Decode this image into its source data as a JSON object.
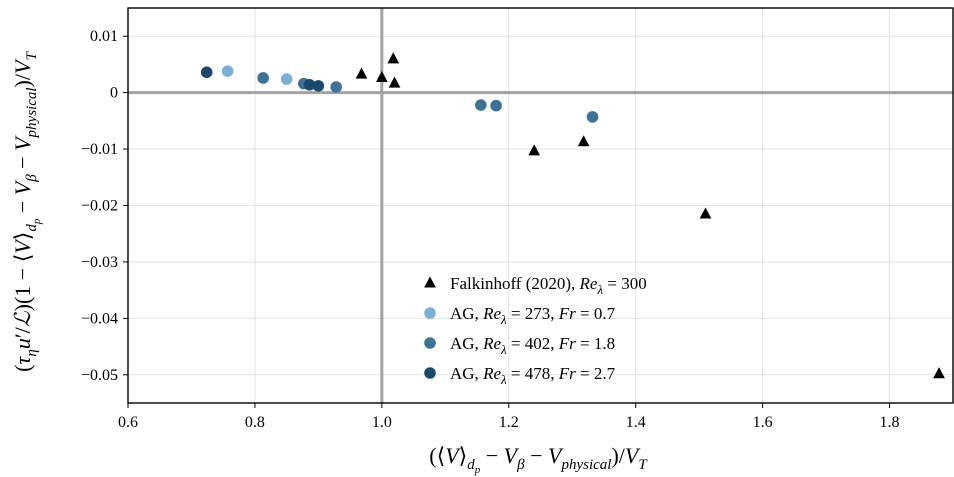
{
  "chart_data": {
    "type": "scatter",
    "xlim": [
      0.6,
      1.9
    ],
    "ylim": [
      -0.055,
      0.015
    ],
    "xticks": [
      0.6,
      0.8,
      1.0,
      1.2,
      1.4,
      1.6,
      1.8
    ],
    "xtick_labels": [
      "0.6",
      "0.8",
      "1.0",
      "1.2",
      "1.4",
      "1.6",
      "1.8"
    ],
    "yticks": [
      0.01,
      0,
      -0.01,
      -0.02,
      -0.03,
      -0.04,
      -0.05
    ],
    "ytick_labels": [
      "0.01",
      "0",
      "−0.01",
      "−0.02",
      "−0.03",
      "−0.04",
      "−0.05"
    ],
    "grid": true,
    "reference_lines": {
      "x": 1.0,
      "y": 0.0
    },
    "legend_placement": "lower-center",
    "xlabel": {
      "paren_open": "(",
      "lang": "⟨",
      "V": "V",
      "rang": "⟩",
      "sub_dp": "d",
      "sub_p": "p",
      "minus1": " − ",
      "Vb": "V",
      "sub_beta": "β",
      "minus2": " − ",
      "Vp": "V",
      "sub_physical": "physical",
      "close": ")/",
      "VT": "V",
      "sub_T": "T"
    },
    "ylabel": {
      "open": "(",
      "tau": "τ",
      "sub_eta": "η",
      "u": "u",
      "prime_over": "′/",
      "L": "ℒ",
      "mid": ")(1 − ",
      "lang": "⟨",
      "V": "V",
      "rang": "⟩",
      "sub_d": "d",
      "sub_p": "p",
      "minus1": " − ",
      "Vb": "V",
      "sub_beta": "β",
      "minus2": " − ",
      "Vp": "V",
      "sub_physical": "physical",
      "close": ")/",
      "VT": "V",
      "sub_T": "T"
    },
    "series": [
      {
        "name": {
          "prefix": "Falkinhoff (2020), ",
          "re": "Re",
          "sub": "λ",
          "rest": " = 300",
          "fr": "",
          "frval": ""
        },
        "marker": "triangle",
        "color": "#000000",
        "x": [
          0.968,
          1.0,
          1.018,
          1.02,
          1.24,
          1.318,
          1.51,
          1.878
        ],
        "y": [
          0.0033,
          0.0027,
          0.006,
          0.0017,
          -0.0103,
          -0.0087,
          -0.0215,
          -0.0498
        ]
      },
      {
        "name": {
          "prefix": "AG, ",
          "re": "Re",
          "sub": "λ",
          "rest": " = 273, ",
          "fr": "Fr",
          "frval": " = 0.7"
        },
        "marker": "circle",
        "color": "#7bafd4",
        "x": [
          0.757,
          0.85
        ],
        "y": [
          0.0038,
          0.0024
        ]
      },
      {
        "name": {
          "prefix": "AG, ",
          "re": "Re",
          "sub": "λ",
          "rest": "  = 402, ",
          "fr": "Fr",
          "frval": " = 1.8"
        },
        "marker": "circle",
        "color": "#3e7196",
        "x": [
          0.813,
          0.877,
          0.928,
          1.156,
          1.18,
          1.332
        ],
        "y": [
          0.0026,
          0.0016,
          0.001,
          -0.0022,
          -0.0023,
          -0.0043
        ]
      },
      {
        "name": {
          "prefix": "AG, ",
          "re": "Re",
          "sub": "λ",
          "rest": " = 478, ",
          "fr": "Fr",
          "frval": " = 2.7"
        },
        "marker": "circle",
        "color": "#1c4a6c",
        "x": [
          0.724,
          0.886,
          0.9
        ],
        "y": [
          0.0036,
          0.0014,
          0.0012
        ]
      }
    ]
  }
}
